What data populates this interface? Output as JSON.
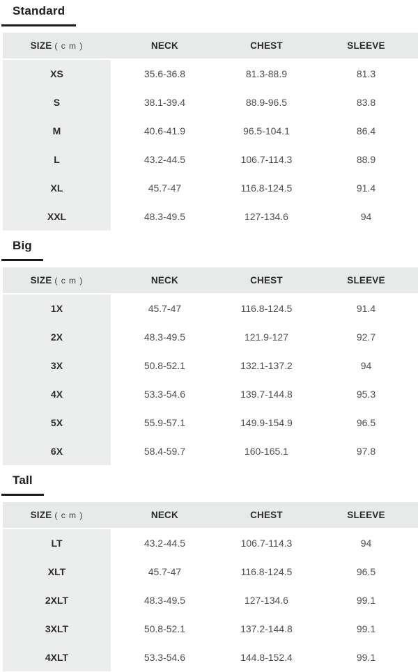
{
  "colors": {
    "header_row_bg": "#e8eaea",
    "size_column_bg": "#eceded",
    "title_underline": "#1a1a1a",
    "header_text": "#2a2a2a",
    "value_text": "#4e4e4e"
  },
  "columns": {
    "size_label": "SIZE",
    "size_unit": "( c m )",
    "neck": "NECK",
    "chest": "CHEST",
    "sleeve": "SLEEVE"
  },
  "sections": [
    {
      "title": "Standard",
      "rows": [
        {
          "size": "XS",
          "neck": "35.6-36.8",
          "chest": "81.3-88.9",
          "sleeve": "81.3"
        },
        {
          "size": "S",
          "neck": "38.1-39.4",
          "chest": "88.9-96.5",
          "sleeve": "83.8"
        },
        {
          "size": "M",
          "neck": "40.6-41.9",
          "chest": "96.5-104.1",
          "sleeve": "86.4"
        },
        {
          "size": "L",
          "neck": "43.2-44.5",
          "chest": "106.7-114.3",
          "sleeve": "88.9"
        },
        {
          "size": "XL",
          "neck": "45.7-47",
          "chest": "116.8-124.5",
          "sleeve": "91.4"
        },
        {
          "size": "XXL",
          "neck": "48.3-49.5",
          "chest": "127-134.6",
          "sleeve": "94"
        }
      ]
    },
    {
      "title": "Big",
      "rows": [
        {
          "size": "1X",
          "neck": "45.7-47",
          "chest": "116.8-124.5",
          "sleeve": "91.4"
        },
        {
          "size": "2X",
          "neck": "48.3-49.5",
          "chest": "121.9-127",
          "sleeve": "92.7"
        },
        {
          "size": "3X",
          "neck": "50.8-52.1",
          "chest": "132.1-137.2",
          "sleeve": "94"
        },
        {
          "size": "4X",
          "neck": "53.3-54.6",
          "chest": "139.7-144.8",
          "sleeve": "95.3"
        },
        {
          "size": "5X",
          "neck": "55.9-57.1",
          "chest": "149.9-154.9",
          "sleeve": "96.5"
        },
        {
          "size": "6X",
          "neck": "58.4-59.7",
          "chest": "160-165.1",
          "sleeve": "97.8"
        }
      ]
    },
    {
      "title": "Tall",
      "rows": [
        {
          "size": "LT",
          "neck": "43.2-44.5",
          "chest": "106.7-114.3",
          "sleeve": "94"
        },
        {
          "size": "XLT",
          "neck": "45.7-47",
          "chest": "116.8-124.5",
          "sleeve": "96.5"
        },
        {
          "size": "2XLT",
          "neck": "48.3-49.5",
          "chest": "127-134.6",
          "sleeve": "99.1"
        },
        {
          "size": "3XLT",
          "neck": "50.8-52.1",
          "chest": "137.2-144.8",
          "sleeve": "99.1"
        },
        {
          "size": "4XLT",
          "neck": "53.3-54.6",
          "chest": "144.8-152.4",
          "sleeve": "99.1"
        }
      ]
    }
  ]
}
